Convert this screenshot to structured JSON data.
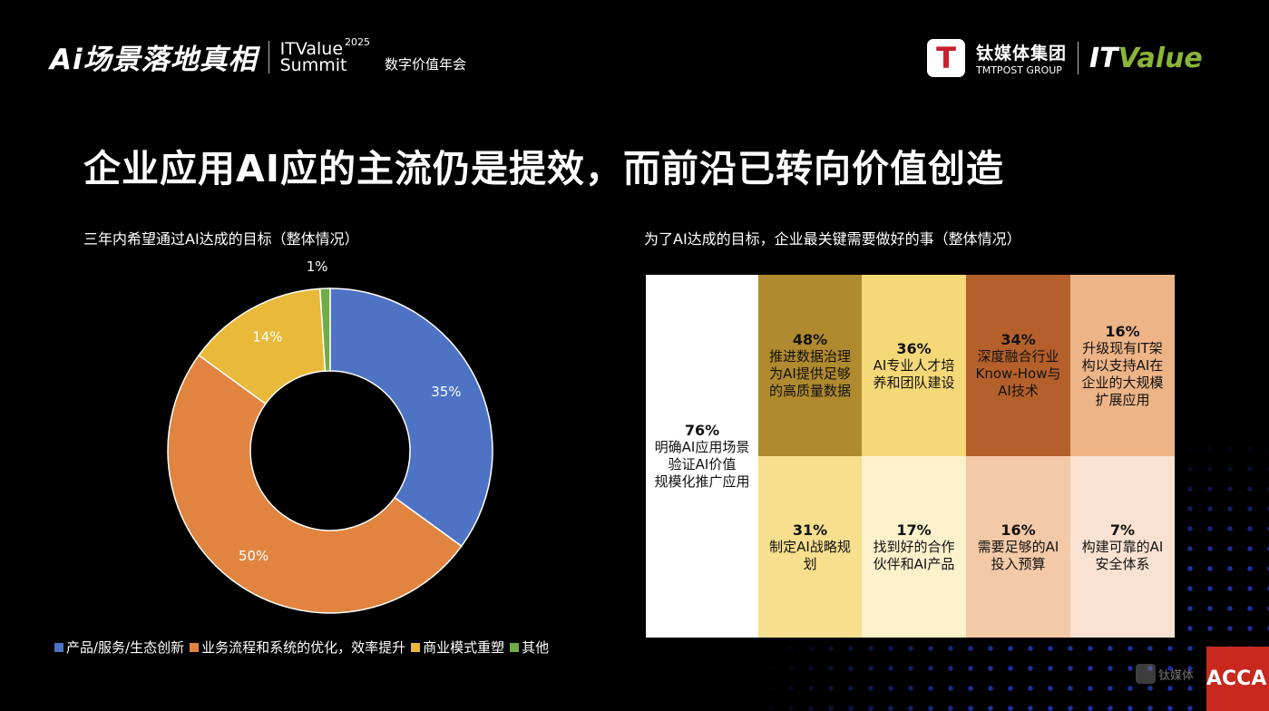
{
  "header": {
    "event_logo": "Ai场景落地真相",
    "summit_line1": "ITValue",
    "summit_year": "2025",
    "summit_line2": "Summit",
    "summit_cn": "数字价值年会",
    "org_icon": "T",
    "org_cn": "钛媒体集团",
    "org_en": "TMTPOST GROUP",
    "brand_it": "IT",
    "brand_value": "Value"
  },
  "title": "企业应用AI应的主流仍是提效，而前沿已转向价值创造",
  "chart_data": {
    "type": "pie",
    "title": "三年内希望通过AI达成的目标（整体情况）",
    "categories": [
      "产品/服务/生态创新",
      "业务流程和系统的优化，效率提升",
      "商业模式重塑",
      "其他"
    ],
    "values": [
      35,
      50,
      14,
      1
    ],
    "labels": [
      "35%",
      "50%",
      "14%",
      "1%"
    ],
    "colors": [
      "#4e72c4",
      "#e0843f",
      "#e9b93a",
      "#70ad47"
    ],
    "legend": "bottom",
    "donut": true
  },
  "table": {
    "title": "为了AI达成的目标，企业最关键需要做好的事（整体情况）",
    "main": {
      "pct": "76%",
      "lines": [
        "明确AI应用场景",
        "验证AI价值",
        "规模化推广应用"
      ]
    },
    "top": [
      {
        "pct": "48%",
        "text": "推进数据治理为AI提供足够的高质量数据",
        "color": "#b08a2e"
      },
      {
        "pct": "36%",
        "text": "AI专业人才培养和团队建设",
        "color": "#f5d878"
      },
      {
        "pct": "34%",
        "text": "深度融合行业Know-How与AI技术",
        "color": "#b5602a"
      },
      {
        "pct": "16%",
        "text": "升级现有IT架构以支持AI在企业的大规模扩展应用",
        "color": "#edb487"
      }
    ],
    "bottom": [
      {
        "pct": "31%",
        "text": "制定AI战略规划",
        "color": "#f7df8e"
      },
      {
        "pct": "17%",
        "text": "找到好的合作伙伴和AI产品",
        "color": "#fdf1cc"
      },
      {
        "pct": "16%",
        "text": "需要足够的AI投入预算",
        "color": "#f4c9a7"
      },
      {
        "pct": "7%",
        "text": "构建可靠的AI安全体系",
        "color": "#f9e2d1"
      }
    ]
  },
  "footer": {
    "acca": "ACCA",
    "watermark": "钛媒体"
  }
}
